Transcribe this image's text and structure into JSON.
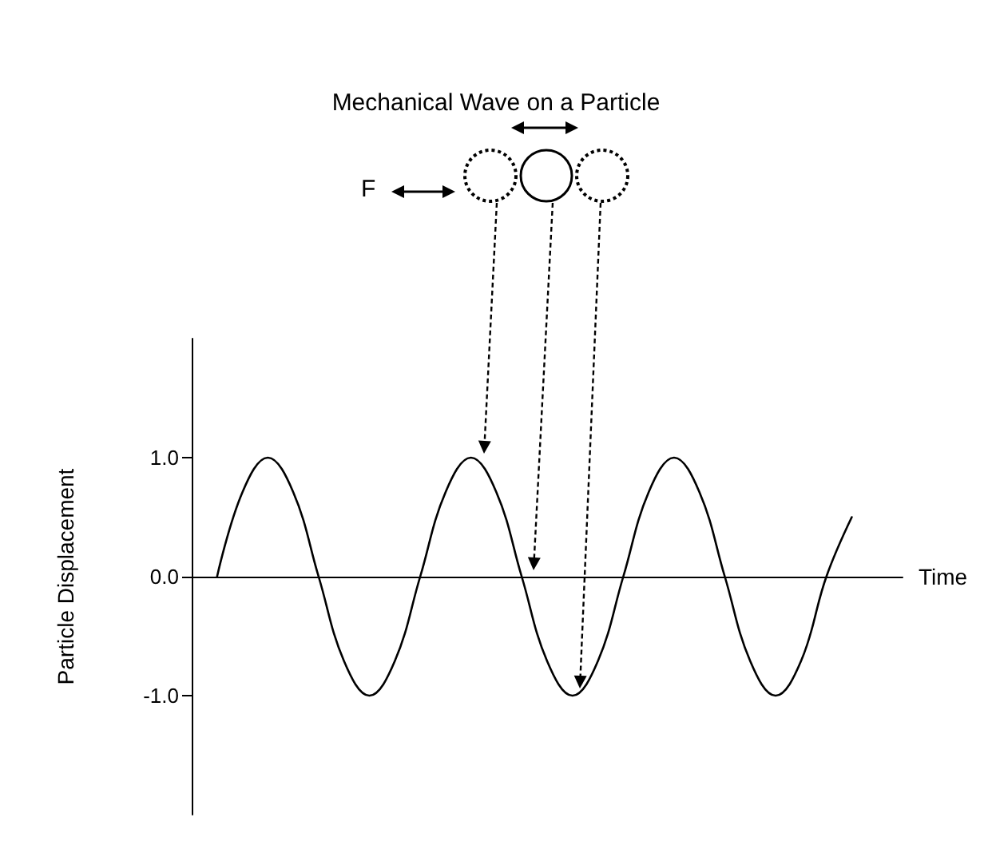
{
  "chart_data": {
    "type": "line",
    "title": "Mechanical Wave on a Particle",
    "xlabel": "Time",
    "ylabel": "Particle Displacement",
    "categories": [
      null,
      null,
      null,
      null,
      null,
      null,
      null,
      null,
      null,
      null,
      null,
      null,
      null,
      null,
      null,
      null,
      null,
      null,
      null,
      null,
      null,
      null,
      null,
      null,
      null,
      null,
      null,
      null,
      null
    ],
    "series": [
      {
        "color": "#000000",
        "values": [
          null,
          0,
          0.71,
          1,
          0.71,
          0,
          -0.71,
          -1,
          -0.71,
          0,
          0.71,
          1,
          0.71,
          0,
          -0.71,
          -1,
          -0.71,
          0,
          0.71,
          1,
          0.71,
          0,
          -0.71,
          -1,
          -0.71,
          0,
          0.5,
          null,
          null
        ]
      }
    ],
    "ylim": [
      -2,
      2
    ],
    "yticks": [
      {
        "value": -1,
        "label": "-1.0"
      },
      {
        "value": 0,
        "label": "0.0"
      },
      {
        "value": 1,
        "label": "1.0"
      }
    ],
    "tick_labels": "y",
    "marker": "none",
    "line_style": "solid",
    "annotations": [
      "F"
    ]
  }
}
